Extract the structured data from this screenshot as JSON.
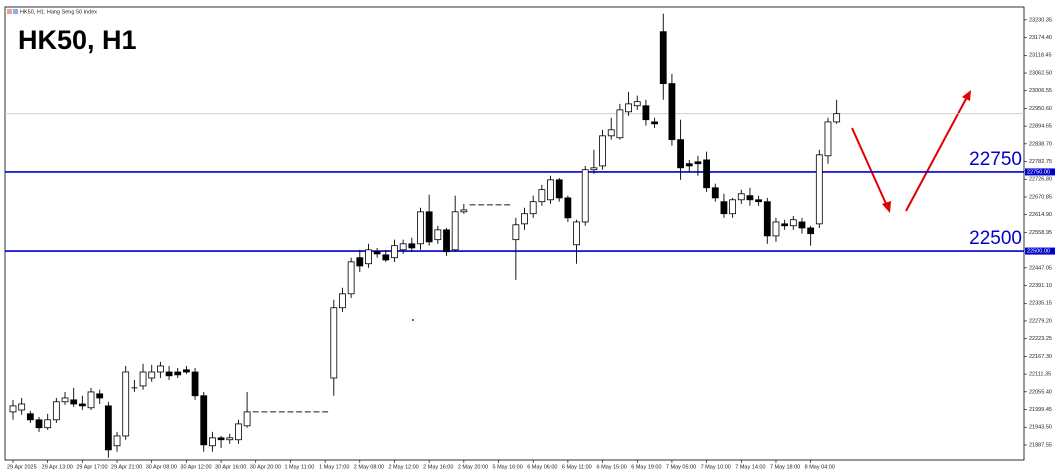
{
  "chart_data": {
    "type": "candlestick",
    "title": "HK50, H1",
    "subtitle": "HK50, H1: Hang Seng 50 Index",
    "up_color": "#ffffff",
    "down_color": "#000000",
    "level_color": "#0000cc",
    "ylim": [
      21840,
      23271
    ],
    "yticks": [
      23230.35,
      {
        "value": 23174.4,
        "label": "23174.40"
      },
      23118.45,
      {
        "value": 23062.5,
        "label": "23062.50"
      },
      23006.55,
      {
        "value": 22950.6,
        "label": "22950.60"
      },
      22894.65,
      {
        "value": 22838.7,
        "label": "22838.70"
      },
      22782.75,
      {
        "value": 22726.8,
        "label": "22726.80"
      },
      22670.85,
      {
        "value": 22614.9,
        "label": "22614.90"
      },
      22558.95,
      22447.05,
      {
        "value": 22391.1,
        "label": "22391.10"
      },
      22335.15,
      {
        "value": 22279.2,
        "label": "22279.20"
      },
      22223.25,
      {
        "value": 22167.3,
        "label": "22167.30"
      },
      22111.35,
      {
        "value": 22055.4,
        "label": "22055.40"
      },
      21999.45,
      {
        "value": 21943.5,
        "label": "21943.50"
      },
      21887.55
    ],
    "xticks": [
      {
        "value": 0,
        "label": "29 Apr 2025"
      },
      {
        "value": 4,
        "label": "29 Apr 13:00"
      },
      {
        "value": 8,
        "label": "29 Apr 17:00"
      },
      {
        "value": 12,
        "label": "29 Apr 21:00"
      },
      {
        "value": 16,
        "label": "30 Apr 08:00"
      },
      {
        "value": 20,
        "label": "30 Apr 12:00"
      },
      {
        "value": 24,
        "label": "30 Apr 16:00"
      },
      {
        "value": 28,
        "label": "30 Apr 20:00"
      },
      {
        "value": 32,
        "label": "1 May 11:00"
      },
      {
        "value": 36,
        "label": "1 May 17:00"
      },
      {
        "value": 40,
        "label": "2 May 08:00"
      },
      {
        "value": 44,
        "label": "2 May 12:00"
      },
      {
        "value": 48,
        "label": "2 May 16:00"
      },
      {
        "value": 52,
        "label": "2 May 20:00"
      },
      {
        "value": 56,
        "label": "5 May 16:00"
      },
      {
        "value": 60,
        "label": "6 May 06:00"
      },
      {
        "value": 64,
        "label": "6 May 11:00"
      },
      {
        "value": 68,
        "label": "6 May 15:00"
      },
      {
        "value": 72,
        "label": "6 May 19:00"
      },
      {
        "value": 76,
        "label": "7 May 05:00"
      },
      {
        "value": 80,
        "label": "7 May 10:00"
      },
      {
        "value": 84,
        "label": "7 May 14:00"
      },
      {
        "value": 88,
        "label": "7 May 18:00"
      },
      {
        "value": 92,
        "label": "8 May 04:00"
      }
    ],
    "levels": [
      {
        "value": 22750,
        "label": "22750.00"
      },
      {
        "value": 22500,
        "label": "22500.00"
      }
    ],
    "bid": 22934,
    "candles": [
      [
        21992,
        22030,
        21967,
        22011
      ],
      [
        21998,
        22036,
        21983,
        22017
      ],
      [
        21986,
        21995,
        21957,
        21967
      ],
      [
        21967,
        21976,
        21929,
        21942
      ],
      [
        21942,
        21986,
        21935,
        21967
      ],
      [
        21967,
        22036,
        21957,
        22024
      ],
      [
        22024,
        22055,
        22014,
        22036
      ],
      [
        22030,
        22068,
        22008,
        22017
      ],
      [
        22017,
        22043,
        21998,
        22011
      ],
      [
        22005,
        22068,
        21998,
        22055
      ],
      [
        22049,
        22062,
        22017,
        22036
      ],
      [
        22011,
        22024,
        21847,
        21872
      ],
      [
        21885,
        21929,
        21866,
        21916
      ],
      [
        21916,
        22137,
        21904,
        22118
      ],
      [
        22068,
        22093,
        22055,
        22068
      ],
      [
        22074,
        22144,
        22062,
        22118
      ],
      [
        22099,
        22141,
        22087,
        22118
      ],
      [
        22118,
        22150,
        22099,
        22137
      ],
      [
        22118,
        22137,
        22093,
        22106
      ],
      [
        22118,
        22131,
        22099,
        22109
      ],
      [
        22125,
        22137,
        22112,
        22118
      ],
      [
        22118,
        22131,
        22030,
        22043
      ],
      [
        22043,
        22055,
        21866,
        21888
      ],
      [
        21885,
        21929,
        21866,
        21910
      ],
      [
        21910,
        21916,
        21878,
        21904
      ],
      [
        21904,
        21923,
        21891,
        21910
      ],
      [
        21904,
        21967,
        21891,
        21954
      ],
      [
        21948,
        22055,
        21942,
        21992
      ],
      [
        21992,
        21992,
        21992,
        21992
      ],
      [
        21992,
        21992,
        21992,
        21992
      ],
      [
        21992,
        21992,
        21992,
        21992
      ],
      [
        21992,
        21992,
        21992,
        21992
      ],
      [
        21992,
        21992,
        21992,
        21992
      ],
      [
        21992,
        21992,
        21992,
        21992
      ],
      [
        21992,
        21992,
        21992,
        21992
      ],
      [
        21992,
        21992,
        21992,
        21992
      ],
      [
        21992,
        21992,
        21992,
        21992
      ],
      [
        22099,
        22346,
        22043,
        22321
      ],
      [
        22321,
        22384,
        22308,
        22365
      ],
      [
        22365,
        22479,
        22352,
        22466
      ],
      [
        22479,
        22504,
        22434,
        22453
      ],
      [
        22460,
        22523,
        22447,
        22504
      ],
      [
        22498,
        22510,
        22479,
        22491
      ],
      [
        22488,
        22504,
        22466,
        22472
      ],
      [
        22479,
        22536,
        22466,
        22517
      ],
      [
        22504,
        22536,
        22491,
        22523
      ],
      [
        22523,
        22542,
        22498,
        22510
      ],
      [
        22523,
        22637,
        22504,
        22624
      ],
      [
        22624,
        22678,
        22517,
        22529
      ],
      [
        22536,
        22580,
        22523,
        22567
      ],
      [
        22567,
        22573,
        22485,
        22498
      ],
      [
        22504,
        22675,
        22498,
        22624
      ],
      [
        22624,
        22649,
        22618,
        22630
      ],
      [
        22646,
        22646,
        22646,
        22646
      ],
      [
        22646,
        22646,
        22646,
        22646
      ],
      [
        22646,
        22646,
        22646,
        22646
      ],
      [
        22646,
        22646,
        22646,
        22646
      ],
      [
        22646,
        22646,
        22646,
        22646
      ],
      [
        22536,
        22605,
        22409,
        22583
      ],
      [
        22586,
        22637,
        22567,
        22618
      ],
      [
        22618,
        22675,
        22605,
        22656
      ],
      [
        22656,
        22709,
        22643,
        22694
      ],
      [
        22662,
        22738,
        22649,
        22725
      ],
      [
        22725,
        22731,
        22656,
        22668
      ],
      [
        22668,
        22675,
        22592,
        22605
      ],
      [
        22520,
        22599,
        22460,
        22592
      ],
      [
        22592,
        22769,
        22580,
        22757
      ],
      [
        22757,
        22820,
        22744,
        22763
      ],
      [
        22769,
        22883,
        22757,
        22864
      ],
      [
        22864,
        22921,
        22852,
        22883
      ],
      [
        22858,
        22965,
        22852,
        22946
      ],
      [
        22940,
        23003,
        22927,
        22965
      ],
      [
        22959,
        22991,
        22946,
        22972
      ],
      [
        22959,
        22978,
        22896,
        22915
      ],
      [
        22908,
        22921,
        22889,
        22902
      ],
      [
        23193,
        23250,
        22978,
        23029
      ],
      [
        23029,
        23060,
        22833,
        22852
      ],
      [
        22852,
        22915,
        22725,
        22763
      ],
      [
        22776,
        22788,
        22750,
        22769
      ],
      [
        22782,
        22801,
        22738,
        22776
      ],
      [
        22788,
        22814,
        22687,
        22700
      ],
      [
        22700,
        22713,
        22656,
        22668
      ],
      [
        22656,
        22681,
        22605,
        22618
      ],
      [
        22618,
        22668,
        22605,
        22662
      ],
      [
        22662,
        22694,
        22649,
        22681
      ],
      [
        22675,
        22700,
        22643,
        22662
      ],
      [
        22662,
        22675,
        22643,
        22656
      ],
      [
        22656,
        22668,
        22523,
        22548
      ],
      [
        22548,
        22605,
        22529,
        22592
      ],
      [
        22586,
        22599,
        22567,
        22580
      ],
      [
        22580,
        22611,
        22567,
        22599
      ],
      [
        22592,
        22605,
        22555,
        22573
      ],
      [
        22573,
        22580,
        22517,
        22555
      ],
      [
        22586,
        22820,
        22573,
        22804
      ],
      [
        22801,
        22921,
        22776,
        22908
      ],
      [
        22908,
        22978,
        22902,
        22934
      ]
    ]
  }
}
